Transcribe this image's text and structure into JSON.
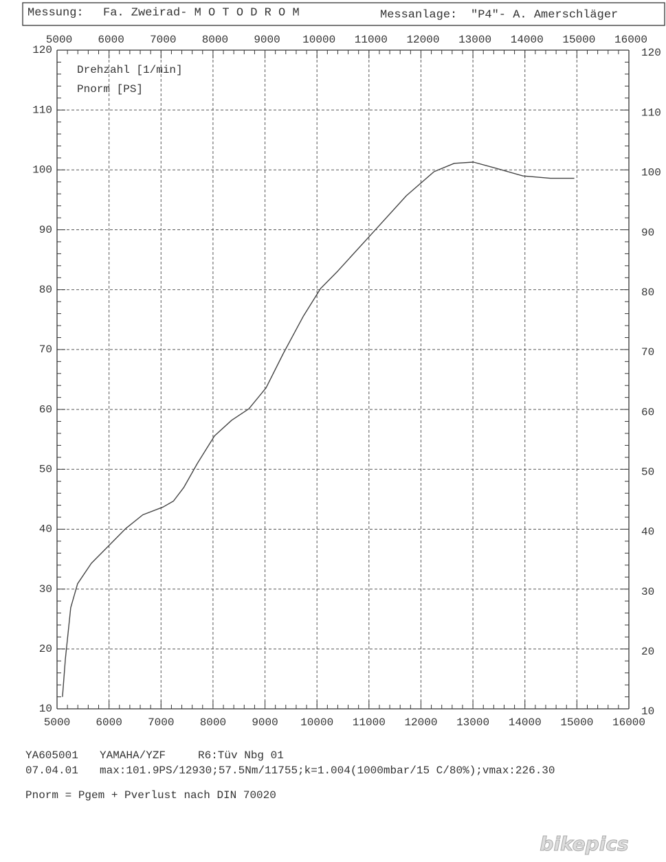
{
  "chart_data": {
    "type": "line",
    "header": [
      "Messung:",
      "Fa. Zweirad- M O T O D R O M",
      "Messanlage:",
      "\"P4\"- A. Amerschläger"
    ],
    "xlabel": "Drehzahl [1/min]",
    "ylabel": "Pnorm [PS]",
    "x": [
      5105,
      5160,
      5263,
      5395,
      5660,
      5990,
      6320,
      6650,
      7040,
      7240,
      7440,
      7700,
      8030,
      8360,
      8690,
      9020,
      9350,
      9740,
      10070,
      10400,
      11060,
      11720,
      12250,
      12640,
      13010,
      13430,
      13960,
      14490,
      14950
    ],
    "values": [
      12,
      18.3,
      26.9,
      30.9,
      34.3,
      37.2,
      40.1,
      42.4,
      43.7,
      44.7,
      47,
      51,
      55.6,
      58.2,
      60.1,
      63.6,
      69.3,
      75.6,
      80.2,
      83.1,
      89.4,
      95.7,
      99.7,
      101.1,
      101.3,
      100.3,
      99,
      98.6,
      98.6
    ],
    "color": "#444444",
    "xlim": [
      5000,
      16000
    ],
    "xticks": [
      5000,
      6000,
      7000,
      8000,
      9000,
      10000,
      11000,
      12000,
      13000,
      14000,
      15000,
      16000
    ],
    "ylim": [
      10,
      120
    ],
    "yticks": [
      10,
      20,
      30,
      40,
      50,
      60,
      70,
      80,
      90,
      100,
      110,
      120
    ],
    "grid": true,
    "footer": [
      "YA605001",
      "YAMAHA/YZF",
      "R6:Tüv Nbg 01",
      "07.04.01",
      "max:101.9PS/12930;57.5Nm/11755;k=1.004(1000mbar/15 C/80%);vmax:226.30",
      "Pnorm = Pgem + Pverlust nach DIN 70020"
    ],
    "watermark": "bikepics"
  }
}
